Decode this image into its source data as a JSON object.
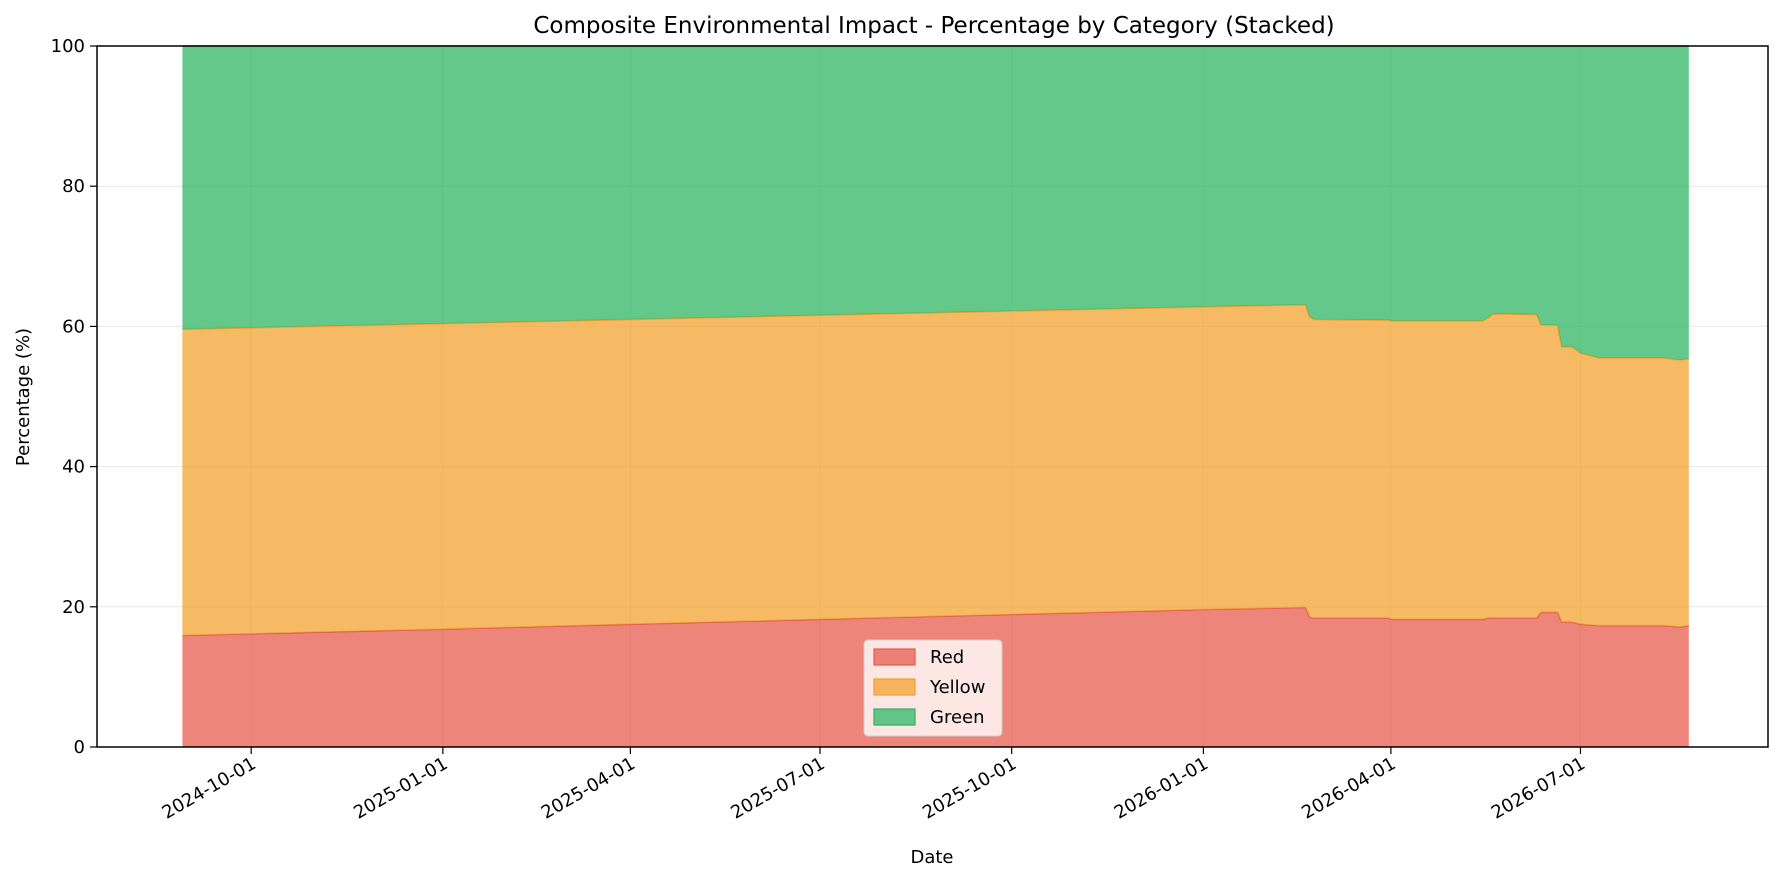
{
  "chart_data": {
    "type": "area",
    "stacked": true,
    "title": "Composite Environmental Impact - Percentage by Category (Stacked)",
    "xlabel": "Date",
    "ylabel": "Percentage (%)",
    "ylim": [
      0,
      100
    ],
    "xlim": [
      "2024-07-19",
      "2026-09-29"
    ],
    "yticks": [
      0,
      20,
      40,
      60,
      80,
      100
    ],
    "xticks": [
      "2024-10-01",
      "2025-01-01",
      "2025-04-01",
      "2025-07-01",
      "2025-10-01",
      "2026-01-01",
      "2026-04-01",
      "2026-07-01"
    ],
    "grid": true,
    "legend_position": "lower center",
    "dates": [
      "2024-08-29",
      "2025-01-01",
      "2025-04-01",
      "2025-07-01",
      "2025-10-01",
      "2026-01-01",
      "2026-02-19",
      "2026-02-21",
      "2026-02-23",
      "2026-03-31",
      "2026-04-01",
      "2026-05-15",
      "2026-05-18",
      "2026-05-20",
      "2026-06-10",
      "2026-06-12",
      "2026-06-20",
      "2026-06-22",
      "2026-06-27",
      "2026-07-01",
      "2026-07-10",
      "2026-08-10",
      "2026-08-18",
      "2026-08-22"
    ],
    "series": [
      {
        "name": "Red",
        "color": "#e8675a",
        "line_color": "#e35a4c",
        "values": [
          15.9,
          16.8,
          17.5,
          18.2,
          18.9,
          19.6,
          19.9,
          18.5,
          18.4,
          18.4,
          18.2,
          18.2,
          18.4,
          18.4,
          18.4,
          19.2,
          19.2,
          17.8,
          17.8,
          17.5,
          17.3,
          17.3,
          17.1,
          17.3
        ]
      },
      {
        "name": "Yellow",
        "color": "#f3a93c",
        "line_color": "#f1a02a",
        "values": [
          43.7,
          43.6,
          43.5,
          43.4,
          43.3,
          43.2,
          43.2,
          42.9,
          42.6,
          42.5,
          42.6,
          42.6,
          42.9,
          43.4,
          43.3,
          41.0,
          41.0,
          39.3,
          39.3,
          38.7,
          38.2,
          38.2,
          38.1,
          38.1
        ]
      },
      {
        "name": "Green",
        "color": "#3dba6e",
        "line_color": "#34ad5f",
        "values": [
          40.4,
          39.6,
          39.0,
          38.4,
          37.8,
          37.2,
          36.9,
          38.6,
          39.0,
          39.1,
          39.2,
          39.2,
          38.7,
          38.2,
          38.3,
          39.8,
          39.8,
          42.9,
          42.9,
          43.8,
          44.5,
          44.5,
          44.8,
          44.6
        ]
      }
    ]
  }
}
